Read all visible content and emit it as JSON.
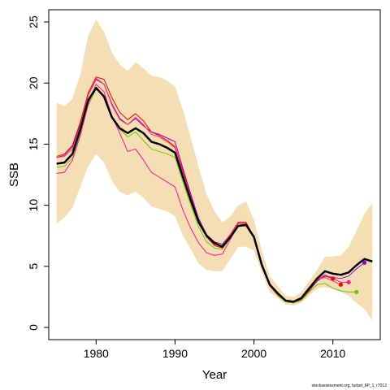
{
  "chart_data": {
    "type": "line",
    "xlabel": "Year",
    "ylabel": "SSB",
    "xlim": [
      1974,
      2016
    ],
    "ylim": [
      -1,
      26
    ],
    "xticks": [
      1980,
      1990,
      2000,
      2010
    ],
    "yticks": [
      0,
      5,
      10,
      15,
      20,
      25
    ],
    "grid": false,
    "legend": "none",
    "credit": "stockassessment.org, turbot_IIP_1, r7012",
    "band": {
      "x": [
        1975,
        1976,
        1977,
        1978,
        1979,
        1980,
        1981,
        1982,
        1983,
        1984,
        1985,
        1986,
        1987,
        1988,
        1989,
        1990,
        1991,
        1992,
        1993,
        1994,
        1995,
        1996,
        1997,
        1998,
        1999,
        2000,
        2001,
        2002,
        2003,
        2004,
        2005,
        2006,
        2007,
        2008,
        2009,
        2010,
        2011,
        2012,
        2013,
        2014,
        2015
      ],
      "upper": [
        18.4,
        18.1,
        18.7,
        20.7,
        23.9,
        25.2,
        24.2,
        22.5,
        21.5,
        21.0,
        21.7,
        21.2,
        20.6,
        20.5,
        20.2,
        19.7,
        17.8,
        15.5,
        13.1,
        10.9,
        9.5,
        8.6,
        9.1,
        10.0,
        10.3,
        8.8,
        6.3,
        4.2,
        3.4,
        2.6,
        2.5,
        2.9,
        3.8,
        4.7,
        5.8,
        5.8,
        5.9,
        6.6,
        7.9,
        9.3,
        10.2
      ],
      "lower": [
        8.5,
        9.0,
        9.8,
        11.5,
        13.2,
        14.2,
        13.5,
        12.0,
        11.1,
        10.8,
        11.1,
        10.6,
        9.9,
        9.7,
        9.5,
        9.1,
        7.5,
        6.4,
        5.2,
        4.7,
        4.6,
        4.6,
        5.6,
        6.6,
        6.6,
        6.3,
        4.5,
        2.9,
        2.4,
        1.9,
        1.8,
        2.0,
        2.6,
        3.2,
        3.3,
        3.2,
        2.9,
        2.6,
        2.0,
        1.5,
        0.6
      ]
    },
    "series": [
      {
        "role": "estimate",
        "color": "#000000",
        "x": [
          1975,
          1976,
          1977,
          1978,
          1979,
          1980,
          1981,
          1982,
          1983,
          1984,
          1985,
          1986,
          1987,
          1988,
          1989,
          1990,
          1991,
          1992,
          1993,
          1994,
          1995,
          1996,
          1997,
          1998,
          1999,
          2000,
          2001,
          2002,
          2003,
          2004,
          2005,
          2006,
          2007,
          2008,
          2009,
          2010,
          2011,
          2012,
          2013,
          2014,
          2015
        ],
        "values": [
          13.4,
          13.5,
          14.2,
          16.2,
          18.6,
          19.6,
          18.9,
          17.2,
          16.3,
          15.9,
          16.3,
          15.9,
          15.2,
          15.0,
          14.7,
          14.3,
          12.3,
          10.4,
          8.6,
          7.5,
          6.9,
          6.6,
          7.4,
          8.3,
          8.4,
          7.4,
          5.1,
          3.5,
          2.8,
          2.2,
          2.1,
          2.4,
          3.2,
          4.0,
          4.6,
          4.4,
          4.3,
          4.5,
          5.1,
          5.6,
          5.4
        ]
      },
      {
        "role": "retro",
        "color": "#ff0000",
        "x": [
          1975,
          1976,
          1977,
          1978,
          1979,
          1980,
          1981,
          1982,
          1983,
          1984,
          1985,
          1986,
          1987,
          1988,
          1989,
          1990,
          1991,
          1992,
          1993,
          1994,
          1995,
          1996,
          1997,
          1998,
          1999,
          2000,
          2001,
          2002,
          2003,
          2004,
          2005,
          2006,
          2007,
          2008,
          2009,
          2010
        ],
        "values": [
          14.0,
          14.2,
          14.9,
          16.8,
          19.2,
          20.5,
          20.3,
          18.8,
          17.6,
          17.0,
          17.5,
          16.9,
          16.0,
          15.7,
          15.3,
          14.8,
          12.8,
          10.8,
          8.8,
          7.4,
          6.7,
          6.5,
          7.6,
          8.6,
          8.6,
          7.4,
          5.1,
          3.4,
          2.7,
          2.1,
          2.0,
          2.3,
          3.0,
          3.8,
          4.2,
          4.0
        ]
      },
      {
        "role": "retro",
        "color": "#9900cc",
        "x": [
          1975,
          1976,
          1977,
          1978,
          1979,
          1980,
          1981,
          1982,
          1983,
          1984,
          1985,
          1986,
          1987,
          1988,
          1989,
          1990,
          1991,
          1992,
          1993,
          1994,
          1995,
          1996,
          1997,
          1998,
          1999,
          2000,
          2001,
          2002,
          2003,
          2004,
          2005,
          2006,
          2007,
          2008,
          2009,
          2010,
          2011,
          2012,
          2013,
          2014
        ],
        "values": [
          13.9,
          14.1,
          14.8,
          16.6,
          19.0,
          20.3,
          19.9,
          18.3,
          17.1,
          16.6,
          17.1,
          16.5,
          16.0,
          15.8,
          15.5,
          15.2,
          13.0,
          10.9,
          8.9,
          7.6,
          7.0,
          6.8,
          7.6,
          8.5,
          8.5,
          7.4,
          5.1,
          3.5,
          2.7,
          2.2,
          2.1,
          2.4,
          3.1,
          3.8,
          4.2,
          4.1,
          4.0,
          4.2,
          4.8,
          5.3
        ]
      },
      {
        "role": "retro",
        "color": "#66cc00",
        "x": [
          1975,
          1976,
          1977,
          1978,
          1979,
          1980,
          1981,
          1982,
          1983,
          1984,
          1985,
          1986,
          1987,
          1988,
          1989,
          1990,
          1991,
          1992,
          1993,
          1994,
          1995,
          1996,
          1997,
          1998,
          1999,
          2000,
          2001,
          2002,
          2003,
          2004,
          2005,
          2006,
          2007,
          2008,
          2009,
          2010,
          2011,
          2012,
          2013
        ],
        "values": [
          13.1,
          13.2,
          13.9,
          15.8,
          18.2,
          19.5,
          18.9,
          17.2,
          16.2,
          15.6,
          16.0,
          15.3,
          14.6,
          14.4,
          14.2,
          13.9,
          11.9,
          10.0,
          8.2,
          7.0,
          6.5,
          6.4,
          7.3,
          8.3,
          8.3,
          7.3,
          5.0,
          3.4,
          2.6,
          2.1,
          2.0,
          2.2,
          2.9,
          3.5,
          3.6,
          3.2,
          3.0,
          2.9,
          2.9
        ]
      },
      {
        "role": "retro",
        "color": "#ff1493",
        "x": [
          1975,
          1976,
          1977,
          1978,
          1979,
          1980,
          1981,
          1982,
          1983,
          1984,
          1985,
          1986,
          1987,
          1988,
          1989,
          1990,
          1991,
          1992,
          1993,
          1994,
          1995,
          1996,
          1997,
          1998,
          1999,
          2000,
          2001,
          2002,
          2003,
          2004,
          2005,
          2006,
          2007,
          2008,
          2009,
          2010,
          2011,
          2012
        ],
        "values": [
          12.6,
          12.7,
          13.7,
          15.7,
          18.3,
          19.9,
          19.3,
          17.3,
          15.9,
          14.4,
          14.6,
          13.7,
          12.7,
          12.3,
          11.9,
          11.5,
          9.6,
          8.1,
          6.9,
          6.1,
          5.9,
          6.0,
          7.2,
          8.3,
          8.3,
          7.3,
          5.0,
          3.4,
          2.7,
          2.2,
          2.1,
          2.4,
          3.2,
          3.9,
          4.3,
          4.0,
          3.7,
          3.7
        ]
      },
      {
        "role": "retro",
        "color": "#ff3366",
        "x": [
          1975,
          1976,
          1977,
          1978,
          1979,
          1980,
          1981,
          1982,
          1983,
          1984,
          1985,
          1986,
          1987,
          1988,
          1989,
          1990,
          1991,
          1992,
          1993,
          1994,
          1995,
          1996,
          1997,
          1998,
          1999,
          2000,
          2001,
          2002,
          2003,
          2004,
          2005,
          2006,
          2007,
          2008,
          2009,
          2010,
          2011
        ],
        "values": [
          13.9,
          14.0,
          14.6,
          16.5,
          19.0,
          20.4,
          19.9,
          18.2,
          17.0,
          16.6,
          17.2,
          16.6,
          15.8,
          15.6,
          15.2,
          14.7,
          12.6,
          10.6,
          8.7,
          7.4,
          6.8,
          6.7,
          7.6,
          8.5,
          8.5,
          7.4,
          5.1,
          3.5,
          2.7,
          2.2,
          2.1,
          2.4,
          3.2,
          3.9,
          4.1,
          3.8,
          3.5
        ]
      }
    ],
    "endpoints": [
      {
        "x": 2010,
        "y": 4.0,
        "color": "#ff0000"
      },
      {
        "x": 2011,
        "y": 3.5,
        "color": "#ff0000"
      },
      {
        "x": 2012,
        "y": 3.7,
        "color": "#ff1493"
      },
      {
        "x": 2013,
        "y": 2.9,
        "color": "#66cc00"
      },
      {
        "x": 2014,
        "y": 5.3,
        "color": "#9900cc"
      }
    ],
    "colors": {
      "band": "#f5deb3",
      "estimate": "#000000",
      "axis": "#000000"
    }
  }
}
